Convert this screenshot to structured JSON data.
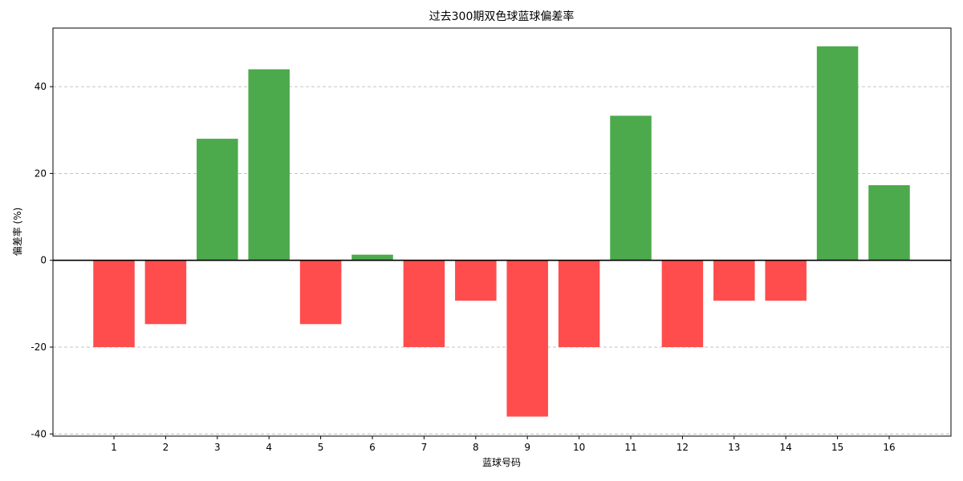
{
  "chart_data": {
    "type": "bar",
    "title": "过去300期双色球蓝球偏差率",
    "xlabel": "蓝球号码",
    "ylabel": "偏差率 (%)",
    "categories": [
      "1",
      "2",
      "3",
      "4",
      "5",
      "6",
      "7",
      "8",
      "9",
      "10",
      "11",
      "12",
      "13",
      "14",
      "15",
      "16"
    ],
    "values": [
      -20,
      -14.7,
      28,
      44,
      -14.7,
      1.3,
      -20,
      -9.3,
      -36,
      -20,
      33.3,
      -20,
      -9.3,
      -9.3,
      49.3,
      17.3
    ],
    "ylim": [
      -40.5,
      53.5
    ],
    "yticks": [
      -40,
      -20,
      0,
      20,
      40
    ],
    "ytick_labels": [
      "-40",
      "-20",
      "0",
      "20",
      "40"
    ],
    "grid": "y",
    "colors": {
      "positive": "#4caa4c",
      "negative": "#ff4d4d",
      "zero_line": "#000000"
    }
  }
}
